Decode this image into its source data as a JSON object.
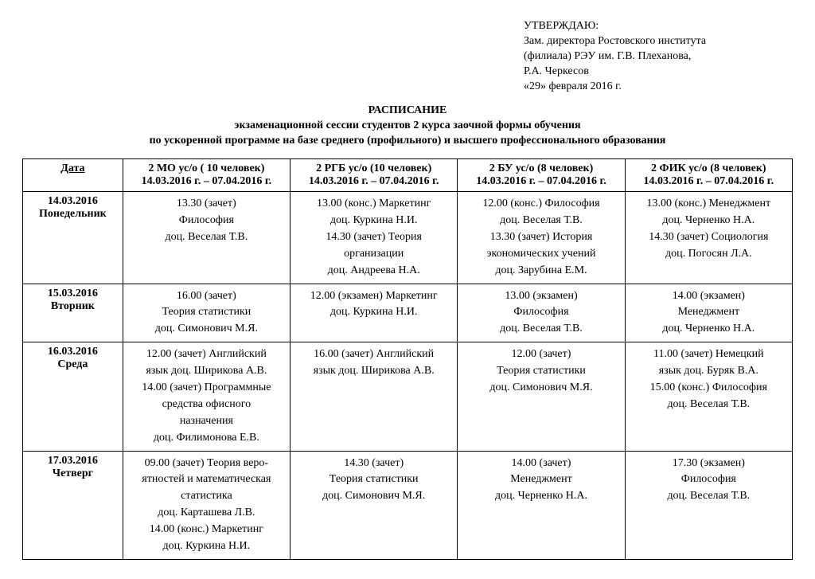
{
  "approval": {
    "lines": [
      "УТВЕРЖДАЮ:",
      "Зам. директора Ростовского института",
      "(филиала) РЭУ им. Г.В. Плеханова,",
      " Р.А. Черкесов",
      "«29» февраля 2016 г."
    ]
  },
  "title": {
    "line1": "РАСПИСАНИЕ",
    "line2": "экзаменационной сессии студентов 2 курса заочной формы обучения",
    "line3": "по ускоренной программе на базе среднего (профильного) и высшего профессионального образования"
  },
  "headers": {
    "date": "Дата",
    "groups": [
      {
        "name": "2 МО ус/о ( 10 человек)",
        "range": "14.03.2016 г. – 07.04.2016 г."
      },
      {
        "name": "2 РГБ ус/о  (10 человек)",
        "range": "14.03.2016 г. – 07.04.2016 г."
      },
      {
        "name": "2 БУ ус/о  (8 человек)",
        "range": "14.03.2016 г. – 07.04.2016 г."
      },
      {
        "name": "2  ФИК ус/о  (8 человек)",
        "range": "14.03.2016 г. – 07.04.2016 г."
      }
    ]
  },
  "rows": [
    {
      "date": "14.03.2016",
      "weekday": "Понедельник",
      "cells": [
        [
          "13.30 (зачет)",
          "Философия",
          "доц. Веселая Т.В."
        ],
        [
          "13.00 (конс.) Маркетинг",
          "доц. Куркина Н.И.",
          "14.30 (зачет) Теория",
          "организации",
          "доц. Андреева Н.А."
        ],
        [
          "12.00 (конс.) Философия",
          "доц. Веселая Т.В.",
          "13.30 (зачет)  История",
          "экономических учений",
          "доц. Зарубина Е.М."
        ],
        [
          "13.00 (конс.) Менеджмент",
          "доц. Черненко Н.А.",
          "14.30 (зачет) Социология",
          "доц. Погосян Л.А."
        ]
      ]
    },
    {
      "date": "15.03.2016",
      "weekday": "Вторник",
      "cells": [
        [
          "16.00 (зачет)",
          "Теория статистики",
          "доц. Симонович М.Я."
        ],
        [
          "12.00 (экзамен) Маркетинг",
          "доц. Куркина Н.И."
        ],
        [
          "13.00 (экзамен)",
          "Философия",
          "доц. Веселая Т.В."
        ],
        [
          "14.00 (экзамен)",
          "Менеджмент",
          "доц. Черненко Н.А."
        ]
      ]
    },
    {
      "date": "16.03.2016",
      "weekday": "Среда",
      "cells": [
        [
          "12.00 (зачет) Английский",
          "язык   доц. Ширикова А.В.",
          "14.00 (зачет) Программные",
          "средства офисного",
          "назначения",
          "доц. Филимонова Е.В."
        ],
        [
          "16.00 (зачет) Английский",
          "язык   доц. Ширикова А.В."
        ],
        [
          "12.00 (зачет)",
          "Теория статистики",
          "доц. Симонович М.Я."
        ],
        [
          "11.00 (зачет) Немецкий",
          "язык доц. Буряк В.А.",
          "15.00 (конс.) Философия",
          "доц. Веселая Т.В."
        ]
      ]
    },
    {
      "date": "17.03.2016",
      "weekday": "Четверг",
      "cells": [
        [
          "09.00 (зачет) Теория веро-",
          "ятностей и математическая",
          "статистика",
          "доц. Карташева Л.В.",
          "14.00 (конс.) Маркетинг",
          "доц. Куркина Н.И."
        ],
        [
          "14.30 (зачет)",
          "Теория статистики",
          "доц. Симонович М.Я."
        ],
        [
          "14.00 (зачет)",
          "Менеджмент",
          "доц. Черненко Н.А."
        ],
        [
          "17.30 (экзамен)",
          "Философия",
          "доц. Веселая Т.В."
        ]
      ]
    }
  ],
  "style": {
    "background": "#ffffff",
    "text_color": "#000000",
    "border_color": "#000000",
    "base_font_size_pt": 11
  }
}
